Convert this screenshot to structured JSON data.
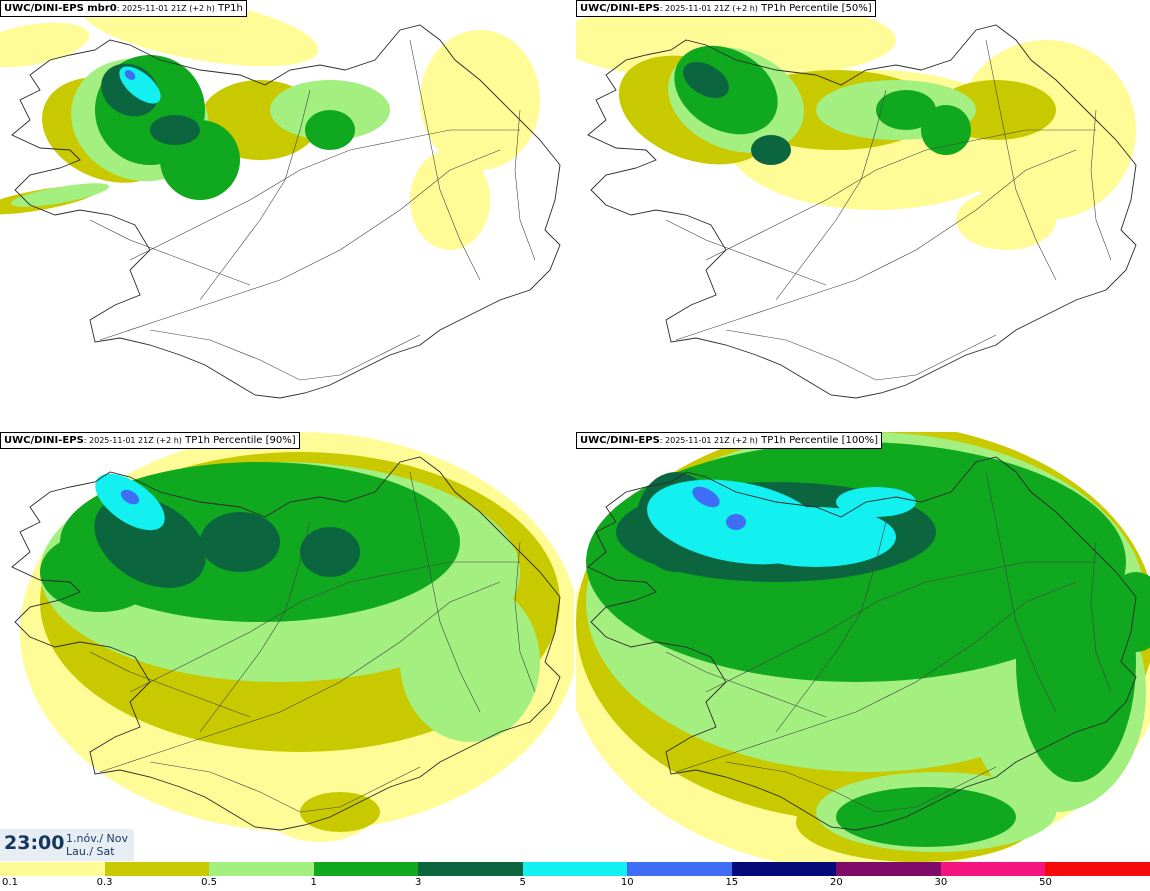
{
  "panels": [
    {
      "model": "UWC/DINI-EPS mbr0",
      "run": "2025-11-01 21Z (+2 h)",
      "variable": "TP1h"
    },
    {
      "model": "UWC/DINI-EPS",
      "run": "2025-11-01 21Z (+2 h)",
      "variable": "TP1h Percentile [50%]"
    },
    {
      "model": "UWC/DINI-EPS",
      "run": "2025-11-01 21Z (+2 h)",
      "variable": "TP1h Percentile [90%]"
    },
    {
      "model": "UWC/DINI-EPS",
      "run": "2025-11-01 21Z (+2 h)",
      "variable": "TP1h Percentile [100%]"
    }
  ],
  "valid_time": {
    "clock": "23:00",
    "date_line1": "1.nóv./ Nov",
    "date_line2": "Lau./ Sat"
  },
  "legend": {
    "labels": [
      "0.1",
      "0.3",
      "0.5",
      "1",
      "3",
      "5",
      "10",
      "15",
      "20",
      "30",
      "50"
    ],
    "colors": [
      "#fffb96",
      "#c9c900",
      "#a3ef7f",
      "#0fa81e",
      "#0b6640",
      "#12f0f0",
      "#3f6ef5",
      "#050a7a",
      "#7f0b68",
      "#f5157f",
      "#f50a0a"
    ]
  },
  "palette": {
    "coast": "#2a2a2a",
    "roads": "#444444"
  }
}
